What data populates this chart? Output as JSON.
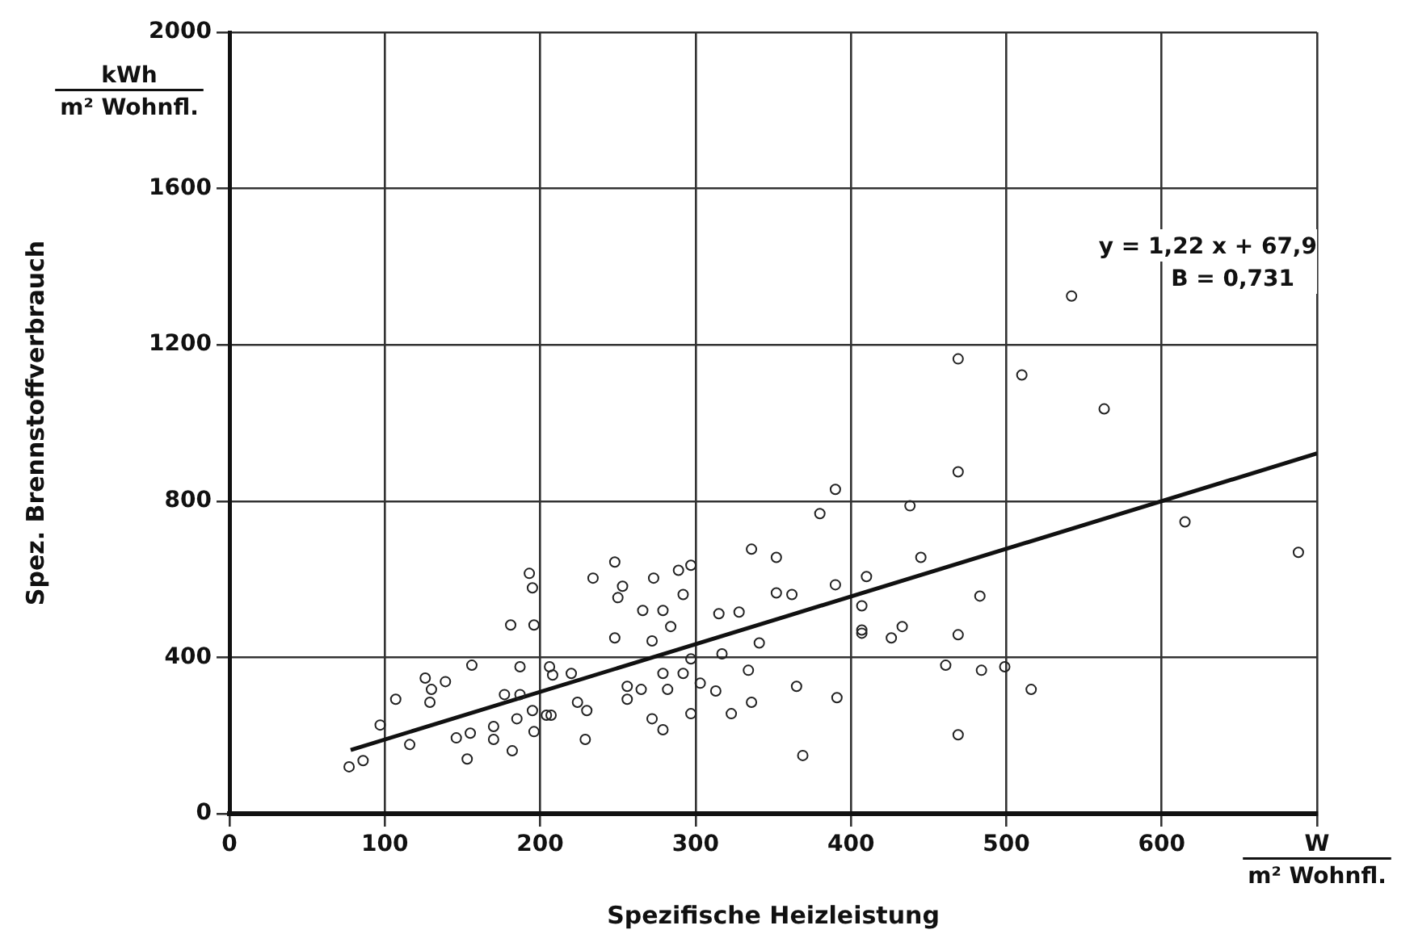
{
  "chart_data": {
    "type": "scatter",
    "xlabel": "Spezifische Heizleistung",
    "ylabel": "Spez. Brennstoffverbrauch",
    "annotations": [
      "kWh",
      "m² Wohnfl.",
      "W",
      "m² Wohnfl.",
      "y = 1,22 x + 67,9",
      "B = 0,731"
    ],
    "xlim": [
      0,
      700
    ],
    "ylim": [
      0,
      2000
    ],
    "xticks": [
      0,
      100,
      200,
      300,
      400,
      500,
      600,
      {
        "value": 700,
        "label": null
      }
    ],
    "yticks": [
      0,
      400,
      800,
      1200,
      1600,
      2000
    ],
    "grid": true,
    "legend": false,
    "marker": "circle",
    "series": [
      {
        "color": "#222222",
        "x": [
          77,
          86,
          97,
          107,
          116,
          126,
          130,
          129,
          139,
          146,
          155,
          153,
          170,
          170,
          177,
          187,
          185,
          182,
          196,
          195,
          193,
          195,
          196,
          181,
          187,
          207,
          208,
          156,
          206,
          204,
          220,
          224,
          229,
          230,
          234,
          248,
          248,
          253,
          250,
          256,
          256,
          265,
          266,
          273,
          272,
          272,
          279,
          279,
          284,
          282,
          279,
          289,
          292,
          297,
          297,
          297,
          292,
          303,
          315,
          313,
          323,
          328,
          317,
          336,
          341,
          336,
          334,
          352,
          352,
          362,
          365,
          369,
          380,
          390,
          390,
          391,
          410,
          407,
          542,
          469,
          469,
          563,
          510,
          438,
          445,
          407,
          407,
          433,
          426,
          469,
          483,
          484,
          499,
          461,
          516,
          469,
          615,
          688
        ],
        "values": [
          120,
          136,
          227,
          293,
          177,
          347,
          318,
          285,
          338,
          194,
          206,
          140,
          223,
          190,
          305,
          305,
          243,
          161,
          210,
          264,
          615,
          578,
          483,
          483,
          376,
          252,
          355,
          380,
          376,
          252,
          359,
          285,
          190,
          264,
          603,
          644,
          450,
          582,
          553,
          293,
          326,
          318,
          520,
          603,
          442,
          243,
          215,
          520,
          479,
          318,
          359,
          623,
          561,
          636,
          396,
          256,
          359,
          334,
          512,
          314,
          256,
          516,
          409,
          677,
          437,
          285,
          367,
          656,
          565,
          561,
          326,
          149,
          768,
          830,
          586,
          297,
          607,
          462,
          1325,
          1164,
          875,
          1036,
          1123,
          788,
          656,
          532,
          470,
          479,
          450,
          458,
          557,
          367,
          376,
          380,
          318,
          202,
          747,
          669
        ]
      },
      {
        "type": "line",
        "marker": "none",
        "color": "#111111",
        "x": [
          78,
          700
        ],
        "values": [
          163,
          922
        ]
      }
    ]
  }
}
